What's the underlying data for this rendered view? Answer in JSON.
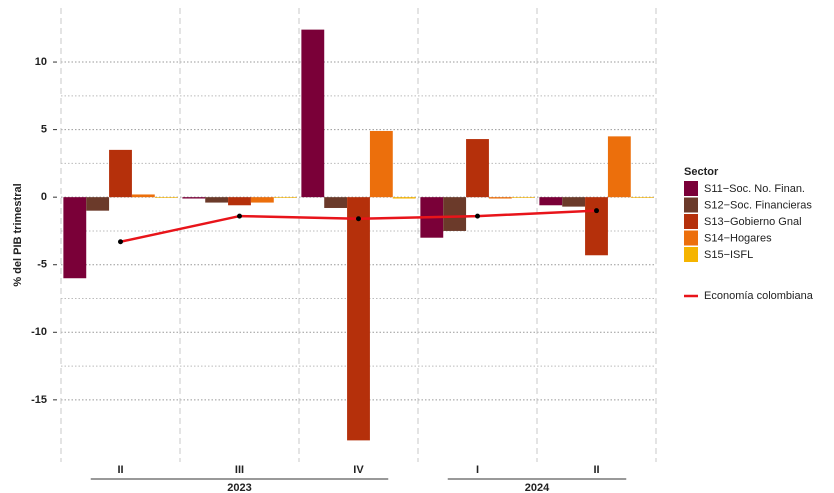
{
  "chart_data": {
    "type": "bar",
    "y_label": "% del PIB trimestral",
    "legend_title": "Sector",
    "categories": [
      "II",
      "III",
      "IV",
      "I",
      "II"
    ],
    "year_groups": [
      {
        "label": "2023",
        "count": 3
      },
      {
        "label": "2024",
        "count": 2
      }
    ],
    "series": [
      {
        "name": "S11−Soc. No. Finan.",
        "color": "#7a0038",
        "values": [
          -6.0,
          -0.1,
          12.4,
          -3.0,
          -0.6
        ]
      },
      {
        "name": "S12−Soc. Financieras",
        "color": "#6b3a2a",
        "values": [
          -1.0,
          -0.4,
          -0.8,
          -2.5,
          -0.7
        ]
      },
      {
        "name": "S13−Gobierno Gnal",
        "color": "#b5300b",
        "values": [
          3.5,
          -0.6,
          -18.0,
          4.3,
          -4.3
        ]
      },
      {
        "name": "S14−Hogares",
        "color": "#ec6f0c",
        "values": [
          0.2,
          -0.4,
          4.9,
          -0.1,
          4.5
        ]
      },
      {
        "name": "S15−ISFL",
        "color": "#f5b400",
        "values": [
          -0.05,
          -0.05,
          -0.1,
          -0.05,
          -0.05
        ]
      }
    ],
    "line": {
      "name": "Economía colombiana",
      "color": "#e8141a",
      "values": [
        -3.3,
        -1.4,
        -1.6,
        -1.4,
        -1.0
      ]
    },
    "ylim": [
      -19.6,
      14
    ],
    "yticks": [
      -15,
      -10,
      -5,
      0,
      5,
      10
    ],
    "grid": true,
    "legend": "right"
  }
}
